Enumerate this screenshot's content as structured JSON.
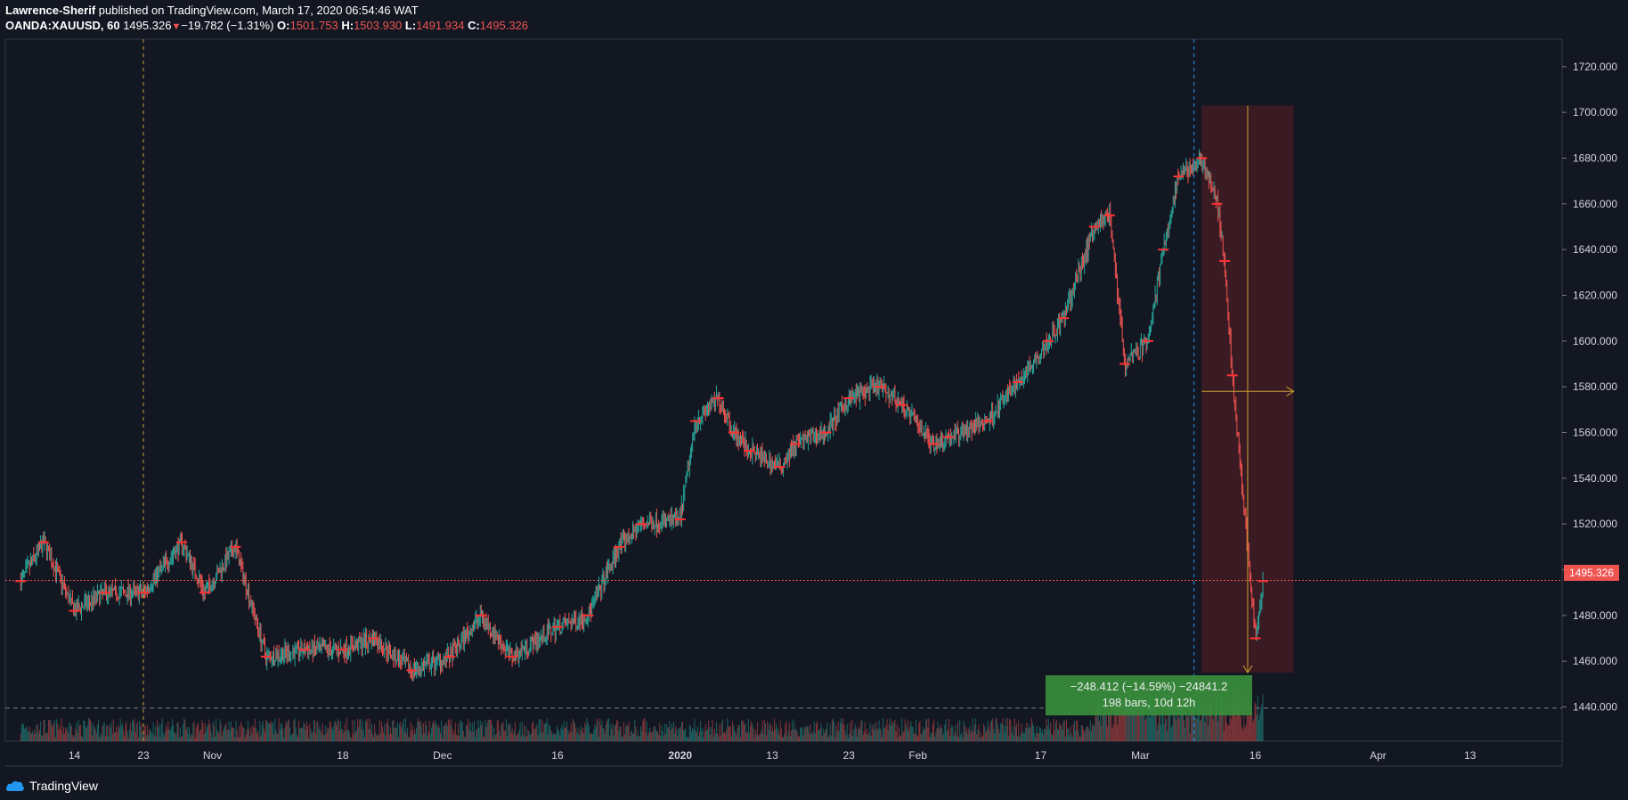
{
  "header": {
    "author": "Lawrence-Sherif",
    "published": " published on TradingView.com, March 17, 2020 06:54:46 WAT",
    "symbol": "OANDA:XAUUSD, 60",
    "last": "1495.326",
    "arrow": "▼",
    "change": "−19.782 (−1.31%)",
    "o_label": "O:",
    "o": "1501.753",
    "h_label": "H:",
    "h": "1503.930",
    "l_label": "L:",
    "l": "1491.934",
    "c_label": "C:",
    "c": "1495.326"
  },
  "footer": {
    "brand": "TradingView"
  },
  "measure": {
    "line1": "−248.412 (−14.59%) −24841.2",
    "line2": "198 bars, 10d 12h"
  },
  "price_tag": "1495.326",
  "colors": {
    "up": "#26a69a",
    "down": "#ef5350",
    "background": "#131722",
    "zone": "#5c1f24",
    "measure": "#388e3c"
  },
  "chart_data": {
    "type": "candlestick",
    "title": "",
    "xlabel": "",
    "ylabel": "",
    "x_ticks": [
      "14",
      "23",
      "Nov",
      "18",
      "Dec",
      "16",
      "2020",
      "13",
      "23",
      "Feb",
      "17",
      "Mar",
      "16",
      "Apr",
      "13"
    ],
    "y_ticks": [
      "1440.000",
      "1460.000",
      "1480.000",
      "1500.000",
      "1520.000",
      "1540.000",
      "1560.000",
      "1580.000",
      "1600.000",
      "1620.000",
      "1640.000",
      "1660.000",
      "1680.000",
      "1700.000",
      "1720.000"
    ],
    "ylim": [
      1425,
      1732
    ],
    "last_price": 1495.326,
    "horizontal_line": 1439.5,
    "path_dates": [
      "Oct 7",
      "Oct 10",
      "Oct 14",
      "Oct 18",
      "Oct 23",
      "Oct 28",
      "Oct 31",
      "Nov 4",
      "Nov 8",
      "Nov 13",
      "Nov 18",
      "Nov 22",
      "Nov 27",
      "Dec 2",
      "Dec 6",
      "Dec 10",
      "Dec 16",
      "Dec 20",
      "Dec 24",
      "Dec 27",
      "Jan 1",
      "Jan 3",
      "Jan 6",
      "Jan 8",
      "Jan 10",
      "Jan 14",
      "Jan 16",
      "Jan 20",
      "Jan 23",
      "Jan 27",
      "Jan 30",
      "Feb 3",
      "Feb 5",
      "Feb 10",
      "Feb 14",
      "Feb 18",
      "Feb 20",
      "Feb 24",
      "Feb 26",
      "Feb 28",
      "Mar 2",
      "Mar 4",
      "Mar 6",
      "Mar 9",
      "Mar 11",
      "Mar 12",
      "Mar 13",
      "Mar 16",
      "Mar 17"
    ],
    "path_prices": [
      1495,
      1512,
      1482,
      1490,
      1490,
      1512,
      1490,
      1510,
      1462,
      1465,
      1465,
      1470,
      1456,
      1462,
      1480,
      1462,
      1475,
      1480,
      1510,
      1520,
      1522,
      1565,
      1575,
      1560,
      1552,
      1545,
      1555,
      1560,
      1575,
      1580,
      1572,
      1555,
      1558,
      1565,
      1582,
      1600,
      1610,
      1650,
      1655,
      1590,
      1600,
      1640,
      1672,
      1680,
      1660,
      1635,
      1585,
      1470,
      1495
    ]
  }
}
